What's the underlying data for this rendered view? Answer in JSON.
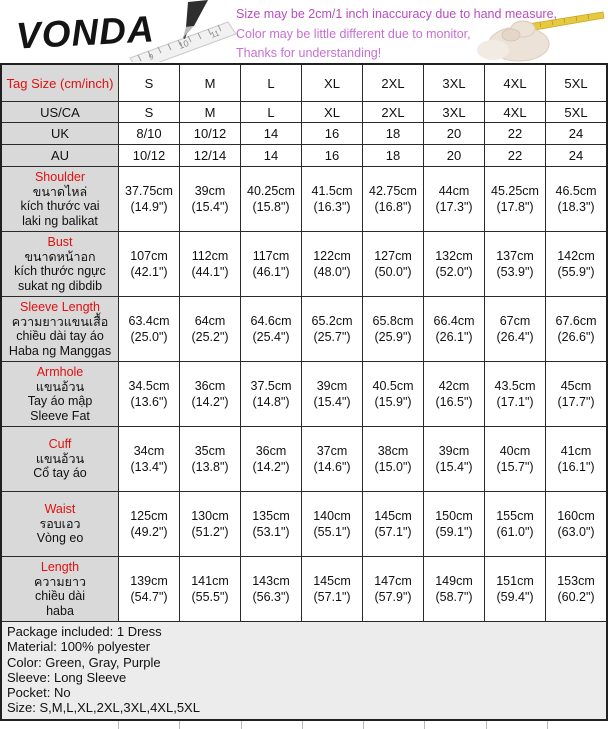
{
  "header": {
    "brand": "VONDA",
    "notes": [
      "Size may be 2cm/1 inch inaccuracy due to hand measure,",
      "Color may be little different due to monitor,",
      "Thanks for understanding!"
    ],
    "note_color": "#bd59c9"
  },
  "colors": {
    "label_red": "#e01010",
    "label_cell_bg": "#d9d9d9",
    "footer_bg": "#ececec",
    "comment_green": "#2e8b2e",
    "tape_yellow": "#e7c93f"
  },
  "size_chart": {
    "header_rows": [
      {
        "label": "Tag Size (cm/inch)",
        "values": [
          "S",
          "M",
          "L",
          "XL",
          "2XL",
          "3XL",
          "4XL",
          "5XL"
        ],
        "green_cols": []
      },
      {
        "label": "US/CA",
        "values": [
          "S",
          "M",
          "L",
          "XL",
          "2XL",
          "3XL",
          "4XL",
          "5XL"
        ],
        "green_cols": []
      },
      {
        "label": "UK",
        "values": [
          "8/10",
          "10/12",
          "14",
          "16",
          "18",
          "20",
          "22",
          "24"
        ],
        "green_cols": [
          2
        ]
      },
      {
        "label": "AU",
        "values": [
          "10/12",
          "12/14",
          "14",
          "16",
          "18",
          "20",
          "22",
          "24"
        ],
        "green_cols": [
          2
        ]
      }
    ],
    "measurement_rows": [
      {
        "label_lines": [
          "Shoulder",
          "ขนาดไหล่",
          "kích thước vai",
          "laki ng balikat"
        ],
        "values_cm": [
          "37.75cm",
          "39cm",
          "40.25cm",
          "41.5cm",
          "42.75cm",
          "44cm",
          "45.25cm",
          "46.5cm"
        ],
        "values_in": [
          "(14.9\")",
          "(15.4\")",
          "(15.8\")",
          "(16.3\")",
          "(16.8\")",
          "(17.3\")",
          "(17.8\")",
          "(18.3\")"
        ]
      },
      {
        "label_lines": [
          "Bust",
          "ขนาดหน้าอก",
          "kích thước ngực",
          "sukat ng dibdib"
        ],
        "values_cm": [
          "107cm",
          "112cm",
          "117cm",
          "122cm",
          "127cm",
          "132cm",
          "137cm",
          "142cm"
        ],
        "values_in": [
          "(42.1\")",
          "(44.1\")",
          "(46.1\")",
          "(48.0\")",
          "(50.0\")",
          "(52.0\")",
          "(53.9\")",
          "(55.9\")"
        ]
      },
      {
        "label_lines": [
          "Sleeve Length",
          "ความยาวแขนเสื้อ",
          "chiều dài tay áo",
          "Haba ng Manggas"
        ],
        "values_cm": [
          "63.4cm",
          "64cm",
          "64.6cm",
          "65.2cm",
          "65.8cm",
          "66.4cm",
          "67cm",
          "67.6cm"
        ],
        "values_in": [
          "(25.0\")",
          "(25.2\")",
          "(25.4\")",
          "(25.7\")",
          "(25.9\")",
          "(26.1\")",
          "(26.4\")",
          "(26.6\")"
        ]
      },
      {
        "label_lines": [
          "Armhole",
          "แขนอ้วน",
          "Tay áo mập",
          "Sleeve Fat"
        ],
        "values_cm": [
          "34.5cm",
          "36cm",
          "37.5cm",
          "39cm",
          "40.5cm",
          "42cm",
          "43.5cm",
          "45cm"
        ],
        "values_in": [
          "(13.6\")",
          "(14.2\")",
          "(14.8\")",
          "(15.4\")",
          "(15.9\")",
          "(16.5\")",
          "(17.1\")",
          "(17.7\")"
        ]
      },
      {
        "label_lines": [
          "Cuff",
          "แขนอ้วน",
          "Cổ tay áo"
        ],
        "values_cm": [
          "34cm",
          "35cm",
          "36cm",
          "37cm",
          "38cm",
          "39cm",
          "40cm",
          "41cm"
        ],
        "values_in": [
          "(13.4\")",
          "(13.8\")",
          "(14.2\")",
          "(14.6\")",
          "(15.0\")",
          "(15.4\")",
          "(15.7\")",
          "(16.1\")"
        ]
      },
      {
        "label_lines": [
          "Waist",
          "รอบเอว",
          "Vòng eo"
        ],
        "values_cm": [
          "125cm",
          "130cm",
          "135cm",
          "140cm",
          "145cm",
          "150cm",
          "155cm",
          "160cm"
        ],
        "values_in": [
          "(49.2\")",
          "(51.2\")",
          "(53.1\")",
          "(55.1\")",
          "(57.1\")",
          "(59.1\")",
          "(61.0\")",
          "(63.0\")"
        ]
      },
      {
        "label_lines": [
          "Length",
          "ความยาว",
          "chiều dài",
          "haba"
        ],
        "values_cm": [
          "139cm",
          "141cm",
          "143cm",
          "145cm",
          "147cm",
          "149cm",
          "151cm",
          "153cm"
        ],
        "values_in": [
          "(54.7\")",
          "(55.5\")",
          "(56.3\")",
          "(57.1\")",
          "(57.9\")",
          "(58.7\")",
          "(59.4\")",
          "(60.2\")"
        ]
      }
    ]
  },
  "footer": {
    "lines": [
      "Package included: 1 Dress",
      "Material: 100% polyester",
      "Color: Green, Gray, Purple",
      "Sleeve: Long Sleeve",
      "Pocket: No",
      "Size: S,M,L,XL,2XL,3XL,4XL,5XL"
    ]
  }
}
